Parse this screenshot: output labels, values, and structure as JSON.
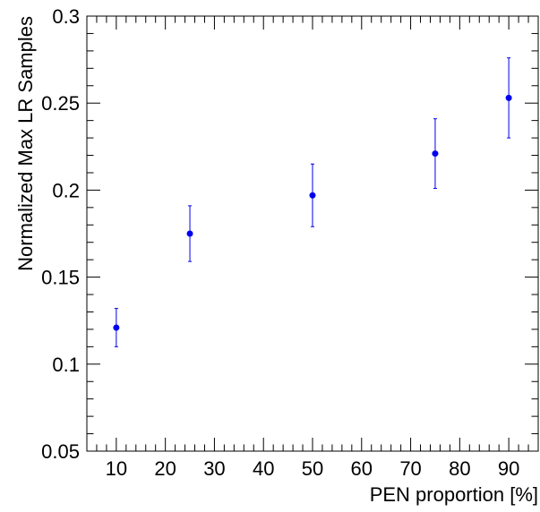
{
  "chart_data": {
    "type": "scatter",
    "title": "",
    "xlabel": "PEN proportion [%]",
    "ylabel": "Normalized Max LR Samples",
    "xlim": [
      4,
      96
    ],
    "ylim": [
      0.05,
      0.3
    ],
    "xticks": [
      10,
      20,
      30,
      40,
      50,
      60,
      70,
      80,
      90
    ],
    "xtick_labels": [
      "10",
      "20",
      "30",
      "40",
      "50",
      "60",
      "70",
      "80",
      "90"
    ],
    "yticks": [
      0.05,
      0.1,
      0.15,
      0.2,
      0.25,
      0.3
    ],
    "ytick_labels": [
      "0.05",
      "0.1",
      "0.15",
      "0.2",
      "0.25",
      "0.3"
    ],
    "grid": false,
    "marker_color": "#0000ee",
    "series": [
      {
        "x": [
          10,
          25,
          50,
          75,
          90
        ],
        "y": [
          0.121,
          0.175,
          0.197,
          0.221,
          0.253
        ],
        "y_low": [
          0.11,
          0.159,
          0.179,
          0.201,
          0.23
        ],
        "y_high": [
          0.132,
          0.191,
          0.215,
          0.241,
          0.276
        ]
      }
    ]
  }
}
